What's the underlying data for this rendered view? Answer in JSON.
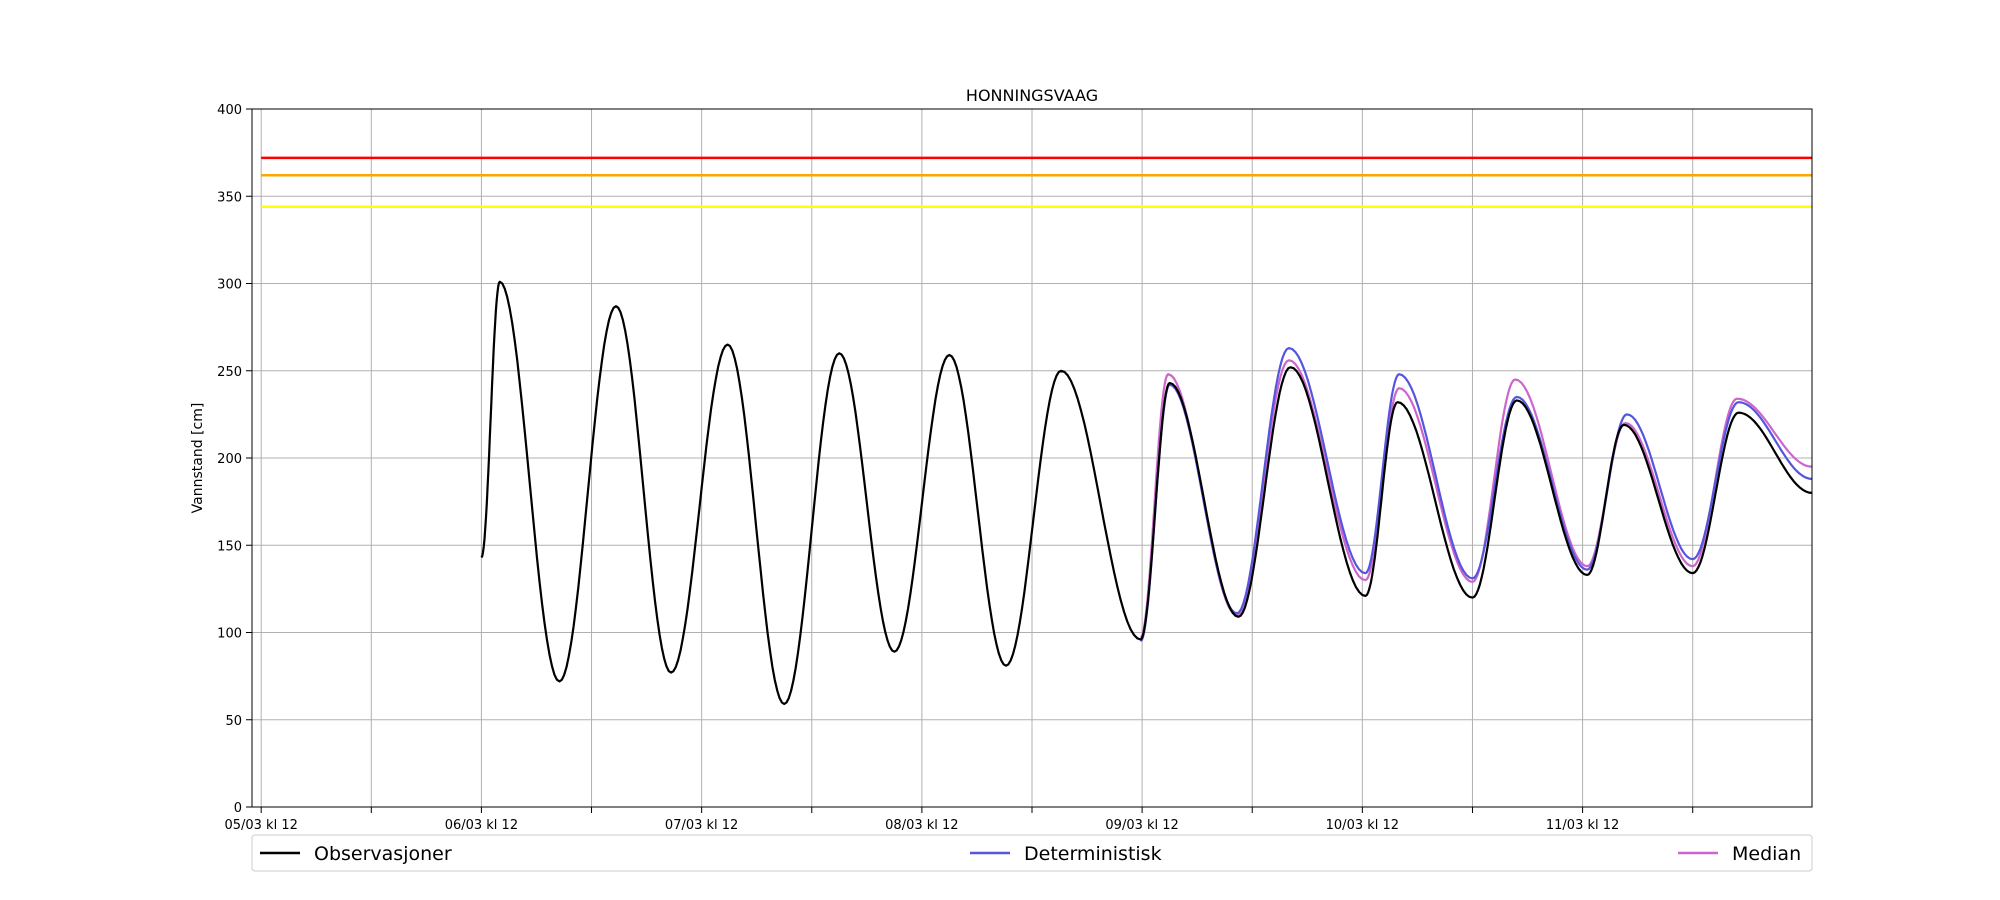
{
  "chart_data": {
    "type": "line",
    "title": "HONNINGSVAAG",
    "xlabel": "",
    "ylabel": "Vannstand [cm]",
    "ylim": [
      0,
      400
    ],
    "xlim": [
      "2024-03-05 11:00",
      "2024-03-12 13:00"
    ],
    "yticks": [
      0,
      50,
      100,
      150,
      200,
      250,
      300,
      350,
      400
    ],
    "xticks": [
      {
        "t": "2024-03-05 12:00",
        "label": "05/03 kl 12"
      },
      {
        "t": "2024-03-06 00:00",
        "label": ""
      },
      {
        "t": "2024-03-06 12:00",
        "label": "06/03 kl 12"
      },
      {
        "t": "2024-03-07 00:00",
        "label": ""
      },
      {
        "t": "2024-03-07 12:00",
        "label": "07/03 kl 12"
      },
      {
        "t": "2024-03-08 00:00",
        "label": ""
      },
      {
        "t": "2024-03-08 12:00",
        "label": "08/03 kl 12"
      },
      {
        "t": "2024-03-09 00:00",
        "label": ""
      },
      {
        "t": "2024-03-09 12:00",
        "label": "09/03 kl 12"
      },
      {
        "t": "2024-03-10 00:00",
        "label": ""
      },
      {
        "t": "2024-03-10 12:00",
        "label": "10/03 kl 12"
      },
      {
        "t": "2024-03-11 00:00",
        "label": ""
      },
      {
        "t": "2024-03-11 12:00",
        "label": "11/03 kl 12"
      },
      {
        "t": "2024-03-12 00:00",
        "label": ""
      }
    ],
    "grid": true,
    "legend_position": "bottom",
    "thresholds": [
      {
        "value": 372,
        "color": "#ff0000",
        "from": "2024-03-05 12:00",
        "to": "2024-03-12 13:00"
      },
      {
        "value": 362,
        "color": "#ffa500",
        "from": "2024-03-05 12:00",
        "to": "2024-03-12 13:00"
      },
      {
        "value": 344,
        "color": "#ffff00",
        "from": "2024-03-05 12:00",
        "to": "2024-03-12 13:00"
      }
    ],
    "series": [
      {
        "name": "Observasjoner",
        "color": "#000000",
        "extrema": [
          [
            "2024-03-06 12:00",
            143
          ],
          [
            "2024-03-06 14:00",
            301
          ],
          [
            "2024-03-06 20:30",
            72
          ],
          [
            "2024-03-07 02:40",
            287
          ],
          [
            "2024-03-07 08:40",
            77
          ],
          [
            "2024-03-07 14:50",
            265
          ],
          [
            "2024-03-07 21:00",
            59
          ],
          [
            "2024-03-08 03:00",
            260
          ],
          [
            "2024-03-08 09:00",
            89
          ],
          [
            "2024-03-08 15:00",
            259
          ],
          [
            "2024-03-08 21:10",
            81
          ],
          [
            "2024-03-09 03:10",
            250
          ],
          [
            "2024-03-09 11:50",
            96
          ],
          [
            "2024-03-09 15:00",
            243
          ],
          [
            "2024-03-09 22:30",
            109
          ],
          [
            "2024-03-10 04:10",
            252
          ],
          [
            "2024-03-10 12:20",
            121
          ],
          [
            "2024-03-10 15:50",
            232
          ],
          [
            "2024-03-11 00:00",
            120
          ],
          [
            "2024-03-11 04:50",
            233
          ],
          [
            "2024-03-11 12:30",
            133
          ],
          [
            "2024-03-11 16:30",
            219
          ],
          [
            "2024-03-12 00:00",
            134
          ],
          [
            "2024-03-12 05:00",
            226
          ],
          [
            "2024-03-12 13:00",
            180
          ]
        ]
      },
      {
        "name": "Deterministisk",
        "color": "#5555dd",
        "extrema": [
          [
            "2024-03-09 11:50",
            95
          ],
          [
            "2024-03-09 15:00",
            242
          ],
          [
            "2024-03-09 22:20",
            111
          ],
          [
            "2024-03-10 04:00",
            263
          ],
          [
            "2024-03-10 12:20",
            134
          ],
          [
            "2024-03-10 16:00",
            248
          ],
          [
            "2024-03-11 00:00",
            131
          ],
          [
            "2024-03-11 04:50",
            235
          ],
          [
            "2024-03-11 12:30",
            136
          ],
          [
            "2024-03-11 16:50",
            225
          ],
          [
            "2024-03-12 00:00",
            142
          ],
          [
            "2024-03-12 05:00",
            232
          ],
          [
            "2024-03-12 13:00",
            188
          ]
        ]
      },
      {
        "name": "Median",
        "color": "#cc66cc",
        "extrema": [
          [
            "2024-03-09 11:50",
            97
          ],
          [
            "2024-03-09 14:50",
            248
          ],
          [
            "2024-03-09 22:20",
            110
          ],
          [
            "2024-03-10 04:00",
            256
          ],
          [
            "2024-03-10 12:20",
            130
          ],
          [
            "2024-03-10 16:00",
            240
          ],
          [
            "2024-03-11 00:00",
            129
          ],
          [
            "2024-03-11 04:40",
            245
          ],
          [
            "2024-03-11 12:30",
            138
          ],
          [
            "2024-03-11 16:40",
            220
          ],
          [
            "2024-03-12 00:00",
            138
          ],
          [
            "2024-03-12 04:50",
            234
          ],
          [
            "2024-03-12 13:00",
            195
          ]
        ]
      }
    ]
  }
}
